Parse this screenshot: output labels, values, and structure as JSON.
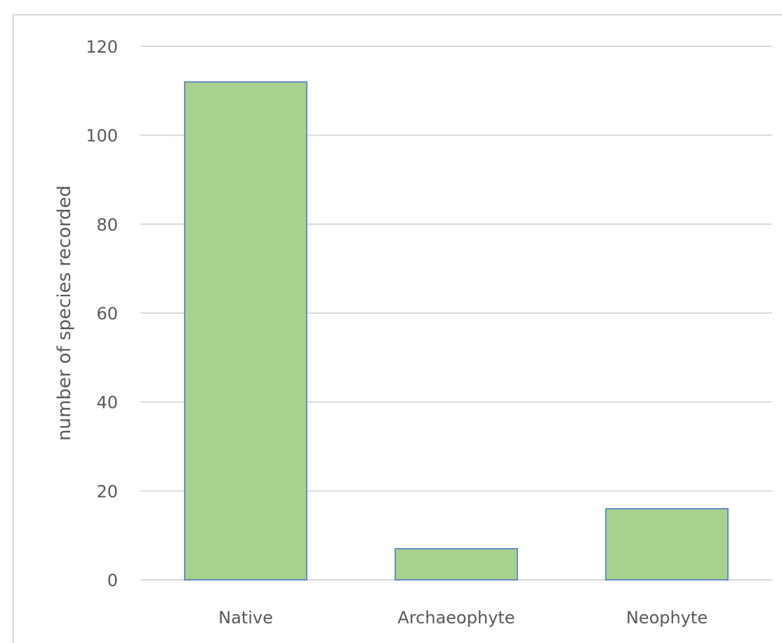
{
  "chart_data": {
    "type": "bar",
    "categories": [
      "Native",
      "Archaeophyte",
      "Neophyte"
    ],
    "values": [
      112,
      7,
      16
    ],
    "ylabel": "number of species recorded",
    "xlabel": "",
    "ylim": [
      0,
      120
    ],
    "yticks": [
      0,
      20,
      40,
      60,
      80,
      100,
      120
    ],
    "grid": true,
    "legend": "none"
  },
  "colors": {
    "bar_fill": "#a9d18e",
    "bar_stroke": "#4472c4",
    "gridline": "#d9d9d9",
    "text": "#595959"
  }
}
